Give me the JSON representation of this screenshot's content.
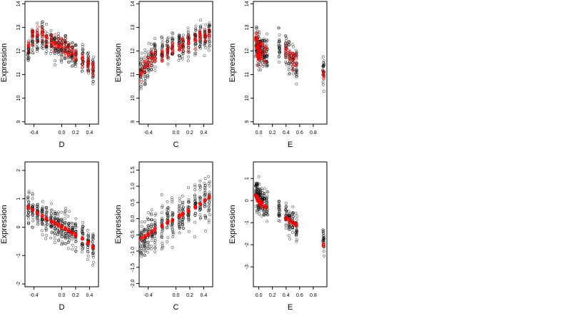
{
  "figure": {
    "layout": "2 rows x 3 columns of scatter panels",
    "point_colors": {
      "black": "#000000",
      "red": "#ff0000"
    },
    "marker": "open circle"
  },
  "chart_data": [
    {
      "type": "scatter",
      "row": 1,
      "col": 1,
      "xlabel": "D",
      "ylabel": "Expression",
      "xlim": [
        -0.53,
        0.53
      ],
      "ylim": [
        8.9,
        14.1
      ],
      "xticks": [
        "-0.4",
        "0.0",
        "0.2",
        "0.4"
      ],
      "xtick_values": [
        -0.4,
        0,
        0.2,
        0.4
      ],
      "yticks": [
        "9",
        "10",
        "11",
        "12",
        "13",
        "14"
      ],
      "ytick_values": [
        9,
        10,
        11,
        12,
        13,
        14
      ],
      "x_columns": [
        -0.48,
        -0.42,
        -0.35,
        -0.28,
        -0.22,
        -0.15,
        -0.1,
        -0.05,
        0,
        0.05,
        0.1,
        0.15,
        0.2,
        0.3,
        0.38,
        0.45
      ],
      "black_center": [
        11.9,
        12.4,
        12.5,
        12.6,
        12.5,
        12.4,
        12.3,
        12.2,
        12.1,
        12.2,
        12.0,
        11.9,
        11.8,
        11.6,
        11.4,
        11.2
      ],
      "black_spread": 0.75,
      "series": [
        {
          "name": "",
          "color": "#ff0000",
          "x": [
            -0.48,
            -0.42,
            -0.35,
            -0.28,
            -0.22,
            -0.15,
            -0.1,
            -0.05,
            0,
            0.05,
            0.1,
            0.15,
            0.2,
            0.3,
            0.38,
            0.45
          ],
          "y": [
            12.3,
            12.6,
            12.8,
            12.7,
            12.6,
            12.4,
            12.3,
            12.3,
            12.2,
            12.1,
            12.0,
            11.9,
            11.8,
            11.6,
            11.5,
            11.3
          ],
          "spread": 0.5
        }
      ]
    },
    {
      "type": "scatter",
      "row": 1,
      "col": 2,
      "xlabel": "C",
      "ylabel": "Expression",
      "xlim": [
        -0.53,
        0.53
      ],
      "ylim": [
        8.9,
        14.1
      ],
      "xticks": [
        "-0.4",
        "0.0",
        "0.2",
        "0.4"
      ],
      "xtick_values": [
        -0.4,
        0,
        0.2,
        0.4
      ],
      "yticks": [
        "9",
        "10",
        "11",
        "12",
        "13",
        "14"
      ],
      "ytick_values": [
        9,
        10,
        11,
        12,
        13,
        14
      ],
      "x_columns": [
        -0.5,
        -0.45,
        -0.4,
        -0.35,
        -0.3,
        -0.2,
        -0.12,
        -0.05,
        0.05,
        0.1,
        0.18,
        0.28,
        0.35,
        0.42,
        0.48
      ],
      "black_center": [
        11.2,
        11.3,
        11.5,
        11.7,
        11.9,
        12.0,
        12.1,
        12.2,
        12.3,
        12.3,
        12.4,
        12.5,
        12.6,
        12.6,
        12.7
      ],
      "black_spread": 0.8,
      "series": [
        {
          "name": "",
          "color": "#ff0000",
          "x": [
            -0.5,
            -0.45,
            -0.4,
            -0.35,
            -0.3,
            -0.2,
            -0.12,
            -0.05,
            0.05,
            0.1,
            0.18,
            0.28,
            0.35,
            0.42,
            0.48
          ],
          "y": [
            11.2,
            11.4,
            11.5,
            11.7,
            11.8,
            11.9,
            12.0,
            12.1,
            12.2,
            12.3,
            12.4,
            12.5,
            12.6,
            12.6,
            12.7
          ],
          "spread": 0.45
        }
      ]
    },
    {
      "type": "scatter",
      "row": 1,
      "col": 3,
      "xlabel": "E",
      "ylabel": "Expression",
      "xlim": [
        -0.08,
        1.0
      ],
      "ylim": [
        8.9,
        14.1
      ],
      "xticks": [
        "0.0",
        "0.2",
        "0.4",
        "0.6",
        "0.8"
      ],
      "xtick_values": [
        0,
        0.2,
        0.4,
        0.6,
        0.8
      ],
      "yticks": [
        "9",
        "10",
        "11",
        "12",
        "13",
        "14"
      ],
      "ytick_values": [
        9,
        10,
        11,
        12,
        13,
        14
      ],
      "x_columns": [
        -0.04,
        -0.02,
        0.0,
        0.02,
        0.05,
        0.08,
        0.12,
        0.3,
        0.4,
        0.45,
        0.5,
        0.55,
        0.95
      ],
      "black_center": [
        12.2,
        12.1,
        12.1,
        12.0,
        12.0,
        12.0,
        11.9,
        12.2,
        12.0,
        11.8,
        11.6,
        11.4,
        11.2
      ],
      "black_spread": 0.9,
      "series": [
        {
          "name": "",
          "color": "#ff0000",
          "x": [
            -0.04,
            -0.03,
            -0.02,
            -0.01,
            0.0,
            0.01,
            0.02,
            0.05,
            0.1,
            0.4,
            0.45,
            0.5,
            0.55,
            0.95
          ],
          "y": [
            12.5,
            12.3,
            12.1,
            11.9,
            12.0,
            11.8,
            12.2,
            12.1,
            12.0,
            11.9,
            11.8,
            11.6,
            11.5,
            11.0
          ],
          "spread": 0.6
        }
      ]
    },
    {
      "type": "scatter",
      "row": 2,
      "col": 1,
      "xlabel": "D",
      "ylabel": "Expression",
      "xlim": [
        -0.53,
        0.53
      ],
      "ylim": [
        -2.1,
        2.3
      ],
      "xticks": [
        "-0.4",
        "0.0",
        "0.2",
        "0.4"
      ],
      "xtick_values": [
        -0.4,
        0,
        0.2,
        0.4
      ],
      "yticks": [
        "-2",
        "-1",
        "0",
        "1",
        "2"
      ],
      "ytick_values": [
        -2,
        -1,
        0,
        1,
        2
      ],
      "x_columns": [
        -0.48,
        -0.42,
        -0.35,
        -0.28,
        -0.22,
        -0.15,
        -0.1,
        -0.05,
        0,
        0.05,
        0.1,
        0.15,
        0.2,
        0.3,
        0.38,
        0.45
      ],
      "black_center": [
        0.7,
        0.6,
        0.5,
        0.4,
        0.3,
        0.2,
        0.15,
        0.1,
        0.0,
        -0.05,
        -0.1,
        -0.2,
        -0.25,
        -0.4,
        -0.55,
        -0.7
      ],
      "black_spread": 0.7,
      "series": [
        {
          "name": "",
          "color": "#ff0000",
          "x": [
            -0.48,
            -0.42,
            -0.35,
            -0.28,
            -0.22,
            -0.15,
            -0.1,
            -0.05,
            0,
            0.05,
            0.1,
            0.15,
            0.2,
            0.3,
            0.38,
            0.45
          ],
          "y": [
            0.7,
            0.6,
            0.5,
            0.4,
            0.3,
            0.22,
            0.15,
            0.08,
            0.0,
            -0.07,
            -0.13,
            -0.2,
            -0.27,
            -0.4,
            -0.55,
            -0.68
          ],
          "spread": 0.06
        }
      ]
    },
    {
      "type": "scatter",
      "row": 2,
      "col": 2,
      "xlabel": "C",
      "ylabel": "Expression",
      "xlim": [
        -0.53,
        0.53
      ],
      "ylim": [
        -2.1,
        1.75
      ],
      "xticks": [
        "-0.4",
        "0.0",
        "0.2",
        "0.4"
      ],
      "xtick_values": [
        -0.4,
        0,
        0.2,
        0.4
      ],
      "yticks": [
        "-2.0",
        "-1.5",
        "-1.0",
        "-0.5",
        "0.0",
        "0.5",
        "1.0",
        "1.5"
      ],
      "ytick_values": [
        -2,
        -1.5,
        -1,
        -0.5,
        0,
        0.5,
        1,
        1.5
      ],
      "x_columns": [
        -0.5,
        -0.45,
        -0.4,
        -0.35,
        -0.3,
        -0.2,
        -0.12,
        -0.05,
        0.05,
        0.1,
        0.18,
        0.28,
        0.35,
        0.42,
        0.48
      ],
      "black_center": [
        -0.7,
        -0.6,
        -0.5,
        -0.4,
        -0.35,
        -0.2,
        -0.1,
        0.0,
        0.1,
        0.2,
        0.3,
        0.4,
        0.5,
        0.6,
        0.7
      ],
      "black_spread": 0.85,
      "series": [
        {
          "name": "",
          "color": "#ff0000",
          "x": [
            -0.5,
            -0.45,
            -0.4,
            -0.35,
            -0.3,
            -0.2,
            -0.12,
            -0.05,
            0.05,
            0.1,
            0.18,
            0.28,
            0.35,
            0.42,
            0.48
          ],
          "y": [
            -0.6,
            -0.55,
            -0.48,
            -0.4,
            -0.32,
            -0.22,
            -0.12,
            -0.04,
            0.08,
            0.15,
            0.25,
            0.35,
            0.45,
            0.55,
            0.65
          ],
          "spread": 0.06
        }
      ]
    },
    {
      "type": "scatter",
      "row": 2,
      "col": 3,
      "xlabel": "E",
      "ylabel": "Expression",
      "xlim": [
        -0.08,
        1.0
      ],
      "ylim": [
        -3.9,
        1.75
      ],
      "xticks": [
        "0.0",
        "0.2",
        "0.4",
        "0.6",
        "0.8"
      ],
      "xtick_values": [
        0,
        0.2,
        0.4,
        0.6,
        0.8
      ],
      "yticks": [
        "-3",
        "-2",
        "-1",
        "0",
        "1"
      ],
      "ytick_values": [
        -3,
        -2,
        -1,
        0,
        1
      ],
      "x_columns": [
        -0.04,
        -0.02,
        0.0,
        0.02,
        0.05,
        0.08,
        0.12,
        0.3,
        0.4,
        0.45,
        0.5,
        0.55,
        0.95
      ],
      "black_center": [
        0.3,
        0.2,
        0.1,
        0.05,
        0.0,
        -0.1,
        -0.2,
        -0.5,
        -0.7,
        -0.9,
        -1.0,
        -1.2,
        -1.8
      ],
      "black_spread": 0.8,
      "series": [
        {
          "name": "",
          "color": "#ff0000",
          "x": [
            -0.04,
            -0.03,
            -0.02,
            -0.01,
            0.0,
            0.01,
            0.02,
            0.05,
            0.1,
            0.4,
            0.45,
            0.5,
            0.55,
            0.95
          ],
          "y": [
            0.2,
            0.15,
            0.1,
            0.05,
            0.0,
            -0.05,
            -0.1,
            -0.15,
            -0.3,
            -0.8,
            -0.9,
            -1.0,
            -1.1,
            -2.0
          ],
          "spread": 0.15
        }
      ]
    }
  ]
}
